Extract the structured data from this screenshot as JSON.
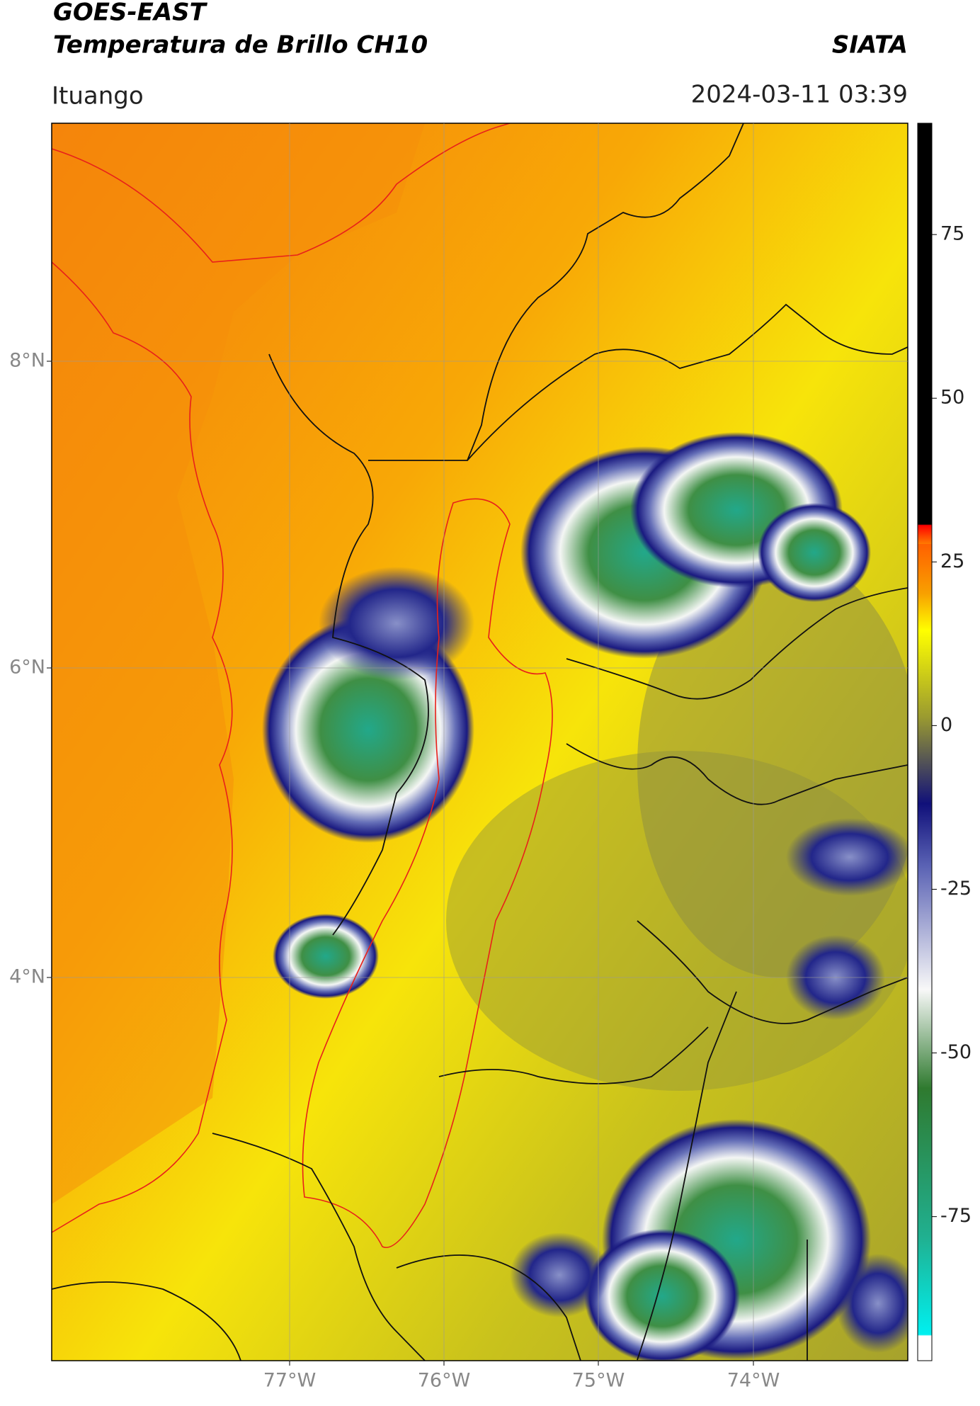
{
  "header": {
    "satellite": "GOES-EAST",
    "product": "Temperatura de Brillo CH10",
    "agency": "SIATA",
    "region": "Ituango",
    "datetime": "2024-03-11 03:39"
  },
  "map": {
    "lat_labels": [
      "8°N",
      "6°N",
      "4°N"
    ],
    "lon_labels": [
      "77°W",
      "76°W",
      "75°W",
      "74°W"
    ]
  },
  "colorbar": {
    "lim": [
      -97,
      92
    ],
    "ticks": [
      75,
      50,
      25,
      0,
      -25,
      -50,
      -75
    ]
  }
}
